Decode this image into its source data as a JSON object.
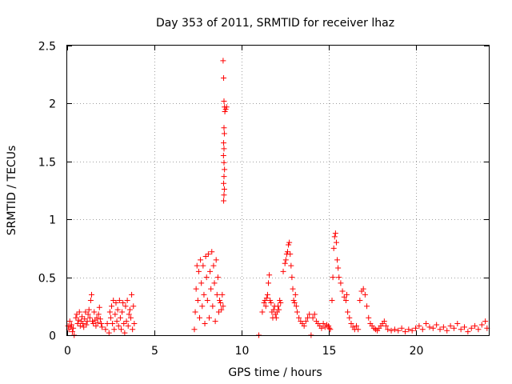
{
  "chart_data": {
    "type": "scatter",
    "title": "Day 353 of 2011, SRMTID for receiver lhaz",
    "xlabel": "GPS time / hours",
    "ylabel": "SRMTID / TECUs",
    "xlim": [
      0,
      24.2
    ],
    "ylim": [
      0,
      2.5
    ],
    "xticks": [
      0,
      5,
      10,
      15,
      20
    ],
    "xtick_labels": [
      "0",
      "5",
      "10",
      "15",
      "20"
    ],
    "yticks": [
      0,
      0.5,
      1,
      1.5,
      2,
      2.5
    ],
    "ytick_labels": [
      "0",
      "0.5",
      "1",
      "1.5",
      "2",
      "2.5"
    ],
    "grid": true,
    "marker": "+",
    "color": "#ff0000",
    "series": [
      {
        "name": "lhaz",
        "points": [
          [
            0.05,
            0.08
          ],
          [
            0.1,
            0.05
          ],
          [
            0.15,
            0.12
          ],
          [
            0.2,
            0.07
          ],
          [
            0.25,
            0.09
          ],
          [
            0.3,
            0.03
          ],
          [
            0.35,
            0.06
          ],
          [
            0.4,
            0.0
          ],
          [
            0.5,
            0.15
          ],
          [
            0.55,
            0.18
          ],
          [
            0.6,
            0.1
          ],
          [
            0.65,
            0.13
          ],
          [
            0.7,
            0.2
          ],
          [
            0.75,
            0.08
          ],
          [
            0.8,
            0.12
          ],
          [
            0.85,
            0.16
          ],
          [
            0.9,
            0.1
          ],
          [
            0.95,
            0.07
          ],
          [
            1.0,
            0.14
          ],
          [
            1.05,
            0.2
          ],
          [
            1.1,
            0.09
          ],
          [
            1.15,
            0.12
          ],
          [
            1.2,
            0.18
          ],
          [
            1.25,
            0.22
          ],
          [
            1.3,
            0.15
          ],
          [
            1.35,
            0.3
          ],
          [
            1.4,
            0.35
          ],
          [
            1.45,
            0.12
          ],
          [
            1.5,
            0.1
          ],
          [
            1.55,
            0.2
          ],
          [
            1.6,
            0.13
          ],
          [
            1.65,
            0.08
          ],
          [
            1.7,
            0.15
          ],
          [
            1.75,
            0.11
          ],
          [
            1.8,
            0.18
          ],
          [
            1.85,
            0.24
          ],
          [
            1.9,
            0.14
          ],
          [
            1.95,
            0.1
          ],
          [
            2.0,
            0.07
          ],
          [
            2.2,
            0.05
          ],
          [
            2.3,
            0.1
          ],
          [
            2.4,
            0.02
          ],
          [
            2.45,
            0.2
          ],
          [
            2.5,
            0.15
          ],
          [
            2.55,
            0.25
          ],
          [
            2.6,
            0.1
          ],
          [
            2.65,
            0.3
          ],
          [
            2.7,
            0.05
          ],
          [
            2.75,
            0.18
          ],
          [
            2.8,
            0.28
          ],
          [
            2.85,
            0.12
          ],
          [
            2.9,
            0.22
          ],
          [
            2.95,
            0.08
          ],
          [
            3.0,
            0.3
          ],
          [
            3.05,
            0.15
          ],
          [
            3.1,
            0.05
          ],
          [
            3.15,
            0.2
          ],
          [
            3.2,
            0.28
          ],
          [
            3.25,
            0.1
          ],
          [
            3.3,
            0.02
          ],
          [
            3.35,
            0.25
          ],
          [
            3.4,
            0.12
          ],
          [
            3.45,
            0.3
          ],
          [
            3.5,
            0.08
          ],
          [
            3.55,
            0.18
          ],
          [
            3.6,
            0.22
          ],
          [
            3.65,
            0.15
          ],
          [
            3.7,
            0.35
          ],
          [
            3.75,
            0.05
          ],
          [
            3.8,
            0.25
          ],
          [
            3.85,
            0.1
          ],
          [
            7.3,
            0.05
          ],
          [
            7.35,
            0.2
          ],
          [
            7.4,
            0.4
          ],
          [
            7.45,
            0.6
          ],
          [
            7.5,
            0.3
          ],
          [
            7.55,
            0.55
          ],
          [
            7.6,
            0.15
          ],
          [
            7.65,
            0.65
          ],
          [
            7.7,
            0.45
          ],
          [
            7.75,
            0.25
          ],
          [
            7.8,
            0.6
          ],
          [
            7.85,
            0.35
          ],
          [
            7.9,
            0.1
          ],
          [
            7.95,
            0.68
          ],
          [
            8.0,
            0.5
          ],
          [
            8.05,
            0.3
          ],
          [
            8.1,
            0.7
          ],
          [
            8.15,
            0.15
          ],
          [
            8.2,
            0.55
          ],
          [
            8.25,
            0.4
          ],
          [
            8.3,
            0.72
          ],
          [
            8.35,
            0.25
          ],
          [
            8.4,
            0.6
          ],
          [
            8.45,
            0.45
          ],
          [
            8.5,
            0.12
          ],
          [
            8.55,
            0.65
          ],
          [
            8.6,
            0.35
          ],
          [
            8.65,
            0.5
          ],
          [
            8.7,
            0.2
          ],
          [
            8.75,
            0.3
          ],
          [
            8.8,
            0.28
          ],
          [
            8.85,
            0.22
          ],
          [
            8.9,
            0.35
          ],
          [
            8.95,
            0.25
          ],
          [
            8.95,
            2.37
          ],
          [
            8.98,
            2.22
          ],
          [
            9.0,
            2.02
          ],
          [
            9.03,
            1.97
          ],
          [
            9.05,
            1.93
          ],
          [
            9.0,
            1.79
          ],
          [
            9.02,
            1.74
          ],
          [
            8.98,
            1.66
          ],
          [
            9.0,
            1.61
          ],
          [
            8.97,
            1.55
          ],
          [
            9.0,
            1.49
          ],
          [
            9.03,
            1.43
          ],
          [
            9.0,
            1.37
          ],
          [
            8.98,
            1.31
          ],
          [
            9.02,
            1.26
          ],
          [
            9.0,
            1.21
          ],
          [
            8.98,
            1.16
          ],
          [
            9.1,
            1.95
          ],
          [
            9.15,
            1.97
          ],
          [
            11.0,
            0.0
          ],
          [
            11.2,
            0.2
          ],
          [
            11.3,
            0.28
          ],
          [
            11.35,
            0.3
          ],
          [
            11.4,
            0.25
          ],
          [
            11.45,
            0.32
          ],
          [
            11.5,
            0.35
          ],
          [
            11.55,
            0.45
          ],
          [
            11.6,
            0.52
          ],
          [
            11.65,
            0.3
          ],
          [
            11.7,
            0.28
          ],
          [
            11.75,
            0.2
          ],
          [
            11.8,
            0.15
          ],
          [
            11.85,
            0.22
          ],
          [
            11.9,
            0.25
          ],
          [
            11.95,
            0.18
          ],
          [
            12.0,
            0.15
          ],
          [
            12.05,
            0.2
          ],
          [
            12.1,
            0.25
          ],
          [
            12.15,
            0.22
          ],
          [
            12.2,
            0.3
          ],
          [
            12.25,
            0.28
          ],
          [
            12.4,
            0.55
          ],
          [
            12.5,
            0.62
          ],
          [
            12.55,
            0.65
          ],
          [
            12.6,
            0.7
          ],
          [
            12.65,
            0.72
          ],
          [
            12.7,
            0.78
          ],
          [
            12.75,
            0.8
          ],
          [
            12.8,
            0.7
          ],
          [
            12.85,
            0.6
          ],
          [
            12.9,
            0.5
          ],
          [
            12.95,
            0.4
          ],
          [
            13.0,
            0.3
          ],
          [
            13.05,
            0.28
          ],
          [
            13.1,
            0.35
          ],
          [
            13.15,
            0.25
          ],
          [
            13.2,
            0.2
          ],
          [
            13.3,
            0.15
          ],
          [
            13.4,
            0.12
          ],
          [
            13.5,
            0.1
          ],
          [
            13.6,
            0.08
          ],
          [
            13.7,
            0.12
          ],
          [
            13.8,
            0.15
          ],
          [
            13.9,
            0.18
          ],
          [
            14.0,
            0.0
          ],
          [
            14.1,
            0.15
          ],
          [
            14.2,
            0.18
          ],
          [
            14.3,
            0.12
          ],
          [
            14.4,
            0.1
          ],
          [
            14.5,
            0.08
          ],
          [
            14.6,
            0.06
          ],
          [
            14.7,
            0.1
          ],
          [
            14.8,
            0.07
          ],
          [
            14.9,
            0.09
          ],
          [
            15.0,
            0.08
          ],
          [
            15.05,
            0.06
          ],
          [
            15.1,
            0.05
          ],
          [
            15.2,
            0.3
          ],
          [
            15.25,
            0.5
          ],
          [
            15.3,
            0.75
          ],
          [
            15.35,
            0.85
          ],
          [
            15.4,
            0.88
          ],
          [
            15.45,
            0.8
          ],
          [
            15.5,
            0.65
          ],
          [
            15.55,
            0.58
          ],
          [
            15.6,
            0.5
          ],
          [
            15.7,
            0.45
          ],
          [
            15.8,
            0.38
          ],
          [
            15.9,
            0.33
          ],
          [
            16.0,
            0.3
          ],
          [
            16.05,
            0.35
          ],
          [
            16.1,
            0.2
          ],
          [
            16.2,
            0.15
          ],
          [
            16.3,
            0.1
          ],
          [
            16.4,
            0.07
          ],
          [
            16.5,
            0.05
          ],
          [
            16.6,
            0.08
          ],
          [
            16.7,
            0.05
          ],
          [
            16.8,
            0.3
          ],
          [
            16.9,
            0.38
          ],
          [
            17.0,
            0.4
          ],
          [
            17.1,
            0.35
          ],
          [
            17.2,
            0.25
          ],
          [
            17.3,
            0.15
          ],
          [
            17.4,
            0.1
          ],
          [
            17.5,
            0.08
          ],
          [
            17.6,
            0.06
          ],
          [
            17.7,
            0.05
          ],
          [
            17.8,
            0.04
          ],
          [
            17.9,
            0.06
          ],
          [
            18.0,
            0.08
          ],
          [
            18.1,
            0.1
          ],
          [
            18.2,
            0.12
          ],
          [
            18.3,
            0.08
          ],
          [
            18.4,
            0.05
          ],
          [
            18.6,
            0.04
          ],
          [
            18.8,
            0.05
          ],
          [
            19.0,
            0.04
          ],
          [
            19.2,
            0.06
          ],
          [
            19.4,
            0.03
          ],
          [
            19.6,
            0.05
          ],
          [
            19.8,
            0.04
          ],
          [
            20.0,
            0.06
          ],
          [
            20.2,
            0.08
          ],
          [
            20.4,
            0.05
          ],
          [
            20.6,
            0.1
          ],
          [
            20.8,
            0.07
          ],
          [
            21.0,
            0.06
          ],
          [
            21.2,
            0.09
          ],
          [
            21.4,
            0.05
          ],
          [
            21.6,
            0.07
          ],
          [
            21.8,
            0.04
          ],
          [
            22.0,
            0.08
          ],
          [
            22.2,
            0.06
          ],
          [
            22.4,
            0.1
          ],
          [
            22.6,
            0.05
          ],
          [
            22.8,
            0.07
          ],
          [
            23.0,
            0.03
          ],
          [
            23.2,
            0.06
          ],
          [
            23.4,
            0.08
          ],
          [
            23.6,
            0.05
          ],
          [
            23.8,
            0.09
          ],
          [
            24.0,
            0.12
          ],
          [
            24.1,
            0.06
          ]
        ]
      }
    ]
  }
}
